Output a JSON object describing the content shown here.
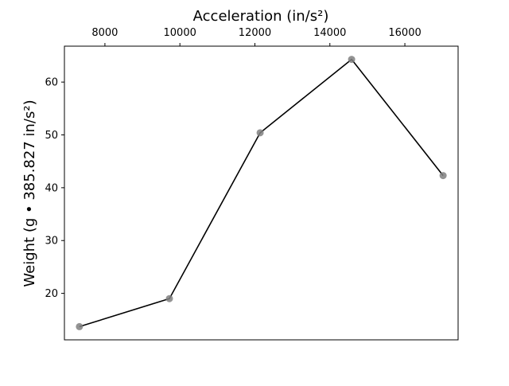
{
  "chart_data": {
    "type": "line",
    "title": "",
    "xlabel": "Acceleration (in/s²)",
    "ylabel": "Weight (g • 385.827 in/s²)",
    "x_axis_position": "top",
    "xlim": [
      6920,
      17420
    ],
    "ylim": [
      11.2,
      66.8
    ],
    "xticks": [
      8000,
      10000,
      12000,
      14000,
      16000
    ],
    "yticks": [
      20,
      30,
      40,
      50,
      60
    ],
    "grid": false,
    "legend": "none",
    "series": [
      {
        "x": [
          7320,
          9720,
          12140,
          14580,
          17020
        ],
        "y": [
          13.7,
          19.0,
          50.4,
          64.3,
          42.3
        ],
        "line_color": "#000000",
        "marker_color": "#808080"
      }
    ]
  }
}
